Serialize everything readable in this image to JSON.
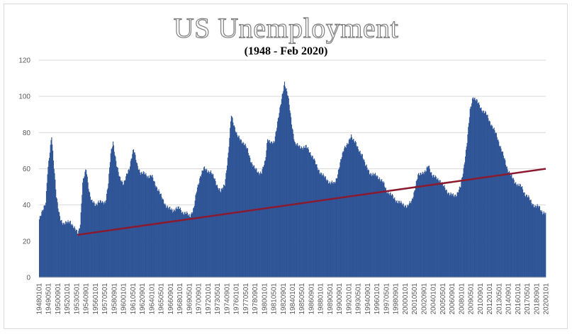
{
  "chart_data": {
    "type": "bar",
    "title": "US Unemployment",
    "subtitle": "(1948 - Feb 2020)",
    "xlabel": "",
    "ylabel": "",
    "ylim": [
      0,
      120
    ],
    "yticks": [
      0,
      20,
      40,
      60,
      80,
      100,
      120
    ],
    "grid": true,
    "legend": "none",
    "bar_color": "#2f5597",
    "trend_color": "#8b1a2f",
    "x_start": "1948-01",
    "x_end": "2020-02",
    "x_tick_labels": [
      "19480101",
      "19490501",
      "19500901",
      "19520101",
      "19530501",
      "19540901",
      "19560101",
      "19570501",
      "19580901",
      "19600101",
      "19610501",
      "19620901",
      "19640101",
      "19650501",
      "19660901",
      "19680101",
      "19690501",
      "19700901",
      "19720101",
      "19730501",
      "19740901",
      "19760101",
      "19770501",
      "19780901",
      "19800101",
      "19810501",
      "19820901",
      "19840101",
      "19850501",
      "19860901",
      "19880101",
      "19890501",
      "19900901",
      "19920101",
      "19930501",
      "19940901",
      "19960101",
      "19970501",
      "19980901",
      "20000101",
      "20010501",
      "20020901",
      "20040101",
      "20050501",
      "20060901",
      "20080101",
      "20090501",
      "20100901",
      "20120101",
      "20130501",
      "20140901",
      "20160101",
      "20170501",
      "20180901",
      "20200101"
    ],
    "series": [
      {
        "kind": "bar",
        "points": [
          [
            "1948-01",
            32
          ],
          [
            "1948-06",
            36
          ],
          [
            "1948-12",
            42
          ],
          [
            "1949-03",
            58
          ],
          [
            "1949-06",
            66
          ],
          [
            "1949-10",
            78
          ],
          [
            "1950-01",
            65
          ],
          [
            "1950-03",
            58
          ],
          [
            "1950-06",
            45
          ],
          [
            "1950-10",
            36
          ],
          [
            "1951-01",
            32
          ],
          [
            "1951-06",
            30
          ],
          [
            "1952-01",
            30
          ],
          [
            "1952-06",
            31
          ],
          [
            "1953-01",
            27
          ],
          [
            "1953-07",
            24
          ],
          [
            "1953-11",
            30
          ],
          [
            "1954-03",
            52
          ],
          [
            "1954-09",
            60
          ],
          [
            "1955-02",
            48
          ],
          [
            "1955-06",
            42
          ],
          [
            "1956-01",
            40
          ],
          [
            "1956-06",
            42
          ],
          [
            "1957-01",
            41
          ],
          [
            "1957-06",
            42
          ],
          [
            "1957-11",
            52
          ],
          [
            "1958-03",
            68
          ],
          [
            "1958-07",
            75
          ],
          [
            "1959-01",
            62
          ],
          [
            "1959-06",
            55
          ],
          [
            "1960-01",
            52
          ],
          [
            "1960-06",
            56
          ],
          [
            "1960-11",
            60
          ],
          [
            "1961-02",
            66
          ],
          [
            "1961-06",
            71
          ],
          [
            "1961-12",
            62
          ],
          [
            "1962-06",
            58
          ],
          [
            "1963-01",
            57
          ],
          [
            "1963-06",
            56
          ],
          [
            "1964-01",
            56
          ],
          [
            "1964-06",
            52
          ],
          [
            "1965-01",
            48
          ],
          [
            "1965-06",
            44
          ],
          [
            "1966-01",
            40
          ],
          [
            "1966-06",
            38
          ],
          [
            "1967-01",
            37
          ],
          [
            "1967-06",
            38
          ],
          [
            "1968-01",
            38
          ],
          [
            "1968-06",
            36
          ],
          [
            "1969-01",
            35
          ],
          [
            "1969-06",
            34
          ],
          [
            "1970-01",
            38
          ],
          [
            "1970-06",
            48
          ],
          [
            "1970-12",
            56
          ],
          [
            "1971-06",
            60
          ],
          [
            "1972-01",
            59
          ],
          [
            "1972-06",
            58
          ],
          [
            "1973-01",
            54
          ],
          [
            "1973-06",
            50
          ],
          [
            "1973-11",
            47
          ],
          [
            "1974-06",
            52
          ],
          [
            "1974-12",
            68
          ],
          [
            "1975-05",
            90
          ],
          [
            "1975-10",
            84
          ],
          [
            "1976-03",
            78
          ],
          [
            "1976-09",
            76
          ],
          [
            "1977-03",
            74
          ],
          [
            "1977-09",
            70
          ],
          [
            "1978-03",
            64
          ],
          [
            "1978-09",
            60
          ],
          [
            "1979-03",
            58
          ],
          [
            "1979-09",
            58
          ],
          [
            "1980-03",
            64
          ],
          [
            "1980-07",
            77
          ],
          [
            "1981-01",
            74
          ],
          [
            "1981-06",
            74
          ],
          [
            "1981-12",
            86
          ],
          [
            "1982-06",
            96
          ],
          [
            "1982-12",
            108
          ],
          [
            "1983-06",
            100
          ],
          [
            "1983-12",
            85
          ],
          [
            "1984-06",
            74
          ],
          [
            "1985-01",
            72
          ],
          [
            "1985-06",
            72
          ],
          [
            "1986-01",
            72
          ],
          [
            "1986-06",
            70
          ],
          [
            "1987-01",
            66
          ],
          [
            "1987-06",
            62
          ],
          [
            "1988-01",
            58
          ],
          [
            "1988-06",
            56
          ],
          [
            "1989-01",
            54
          ],
          [
            "1989-06",
            52
          ],
          [
            "1990-01",
            52
          ],
          [
            "1990-06",
            56
          ],
          [
            "1990-12",
            64
          ],
          [
            "1991-06",
            72
          ],
          [
            "1992-01",
            74
          ],
          [
            "1992-06",
            78
          ],
          [
            "1993-01",
            75
          ],
          [
            "1993-06",
            70
          ],
          [
            "1994-01",
            68
          ],
          [
            "1994-06",
            62
          ],
          [
            "1995-01",
            58
          ],
          [
            "1995-06",
            57
          ],
          [
            "1996-01",
            56
          ],
          [
            "1996-06",
            55
          ],
          [
            "1997-01",
            52
          ],
          [
            "1997-06",
            48
          ],
          [
            "1998-01",
            46
          ],
          [
            "1998-06",
            44
          ],
          [
            "1999-01",
            42
          ],
          [
            "1999-06",
            41
          ],
          [
            "2000-01",
            40
          ],
          [
            "2000-06",
            39
          ],
          [
            "2001-01",
            42
          ],
          [
            "2001-06",
            48
          ],
          [
            "2001-12",
            56
          ],
          [
            "2002-06",
            58
          ],
          [
            "2003-01",
            58
          ],
          [
            "2003-06",
            62
          ],
          [
            "2004-01",
            56
          ],
          [
            "2004-06",
            55
          ],
          [
            "2005-01",
            54
          ],
          [
            "2005-06",
            51
          ],
          [
            "2006-01",
            48
          ],
          [
            "2006-06",
            46
          ],
          [
            "2007-01",
            45
          ],
          [
            "2007-06",
            46
          ],
          [
            "2008-01",
            50
          ],
          [
            "2008-06",
            60
          ],
          [
            "2008-12",
            75
          ],
          [
            "2009-05",
            92
          ],
          [
            "2009-10",
            100
          ],
          [
            "2010-03",
            98
          ],
          [
            "2010-09",
            95
          ],
          [
            "2011-03",
            92
          ],
          [
            "2011-09",
            90
          ],
          [
            "2012-03",
            86
          ],
          [
            "2012-09",
            82
          ],
          [
            "2013-03",
            78
          ],
          [
            "2013-09",
            72
          ],
          [
            "2014-03",
            66
          ],
          [
            "2014-09",
            60
          ],
          [
            "2015-03",
            56
          ],
          [
            "2015-09",
            53
          ],
          [
            "2016-03",
            51
          ],
          [
            "2016-09",
            50
          ],
          [
            "2017-03",
            46
          ],
          [
            "2017-09",
            44
          ],
          [
            "2018-03",
            41
          ],
          [
            "2018-09",
            39
          ],
          [
            "2019-03",
            39
          ],
          [
            "2019-09",
            36
          ],
          [
            "2020-02",
            35
          ]
        ]
      },
      {
        "kind": "line",
        "points": [
          [
            "1953-07",
            23.5
          ],
          [
            "2020-02",
            60
          ]
        ]
      }
    ]
  }
}
